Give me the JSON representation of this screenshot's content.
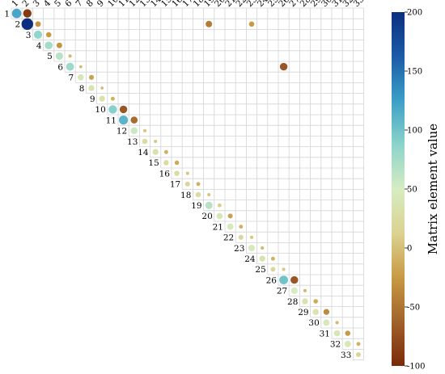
{
  "chart_data": {
    "type": "heatmap",
    "subtype": "upper-triangular bubble matrix",
    "size": 33,
    "row_labels": [
      "1",
      "2",
      "3",
      "4",
      "5",
      "6",
      "7",
      "8",
      "9",
      "10",
      "11",
      "12",
      "13",
      "14",
      "15",
      "16",
      "17",
      "18",
      "19",
      "20",
      "21",
      "22",
      "23",
      "24",
      "25",
      "26",
      "27",
      "28",
      "29",
      "30",
      "31",
      "32",
      "33"
    ],
    "col_labels": [
      "1",
      "2",
      "3",
      "4",
      "5",
      "6",
      "7",
      "8",
      "9",
      "10",
      "11",
      "12",
      "13",
      "14",
      "15",
      "16",
      "17",
      "18",
      "19",
      "20",
      "21",
      "22",
      "23",
      "24",
      "25",
      "26",
      "27",
      "28",
      "29",
      "30",
      "31",
      "32",
      "33"
    ],
    "cells": [
      {
        "row": 1,
        "col": 1,
        "value": 120
      },
      {
        "row": 1,
        "col": 2,
        "value": -90
      },
      {
        "row": 2,
        "col": 2,
        "value": 200
      },
      {
        "row": 2,
        "col": 3,
        "value": -30
      },
      {
        "row": 2,
        "col": 19,
        "value": -45
      },
      {
        "row": 2,
        "col": 23,
        "value": -25
      },
      {
        "row": 3,
        "col": 3,
        "value": 85
      },
      {
        "row": 3,
        "col": 4,
        "value": -25
      },
      {
        "row": 4,
        "col": 4,
        "value": 75
      },
      {
        "row": 4,
        "col": 5,
        "value": -30
      },
      {
        "row": 5,
        "col": 5,
        "value": 65
      },
      {
        "row": 5,
        "col": 6,
        "value": -5
      },
      {
        "row": 6,
        "col": 6,
        "value": 80
      },
      {
        "row": 6,
        "col": 7,
        "value": -3
      },
      {
        "row": 6,
        "col": 26,
        "value": -70
      },
      {
        "row": 7,
        "col": 7,
        "value": 40
      },
      {
        "row": 7,
        "col": 8,
        "value": -20
      },
      {
        "row": 8,
        "col": 8,
        "value": 35
      },
      {
        "row": 8,
        "col": 9,
        "value": -3
      },
      {
        "row": 9,
        "col": 9,
        "value": 35
      },
      {
        "row": 9,
        "col": 10,
        "value": -10
      },
      {
        "row": 10,
        "col": 10,
        "value": 90
      },
      {
        "row": 10,
        "col": 11,
        "value": -70
      },
      {
        "row": 11,
        "col": 11,
        "value": 110
      },
      {
        "row": 11,
        "col": 12,
        "value": -55
      },
      {
        "row": 12,
        "col": 12,
        "value": 55
      },
      {
        "row": 12,
        "col": 13,
        "value": 5
      },
      {
        "row": 13,
        "col": 13,
        "value": 25
      },
      {
        "row": 13,
        "col": 14,
        "value": 5
      },
      {
        "row": 14,
        "col": 14,
        "value": 35
      },
      {
        "row": 14,
        "col": 15,
        "value": -10
      },
      {
        "row": 15,
        "col": 15,
        "value": 25
      },
      {
        "row": 15,
        "col": 16,
        "value": -15
      },
      {
        "row": 16,
        "col": 16,
        "value": 25
      },
      {
        "row": 16,
        "col": 17,
        "value": 5
      },
      {
        "row": 17,
        "col": 17,
        "value": 20
      },
      {
        "row": 17,
        "col": 18,
        "value": -10
      },
      {
        "row": 18,
        "col": 18,
        "value": 25
      },
      {
        "row": 18,
        "col": 19,
        "value": 5
      },
      {
        "row": 19,
        "col": 19,
        "value": 65
      },
      {
        "row": 19,
        "col": 20,
        "value": 10
      },
      {
        "row": 20,
        "col": 20,
        "value": 40
      },
      {
        "row": 20,
        "col": 21,
        "value": -20
      },
      {
        "row": 21,
        "col": 21,
        "value": 45
      },
      {
        "row": 21,
        "col": 22,
        "value": -10
      },
      {
        "row": 22,
        "col": 22,
        "value": 20
      },
      {
        "row": 22,
        "col": 23,
        "value": 5
      },
      {
        "row": 23,
        "col": 23,
        "value": 45
      },
      {
        "row": 23,
        "col": 24,
        "value": -5
      },
      {
        "row": 24,
        "col": 24,
        "value": 35
      },
      {
        "row": 24,
        "col": 25,
        "value": -10
      },
      {
        "row": 25,
        "col": 25,
        "value": 20
      },
      {
        "row": 25,
        "col": 26,
        "value": 5
      },
      {
        "row": 26,
        "col": 26,
        "value": 100
      },
      {
        "row": 26,
        "col": 27,
        "value": -70
      },
      {
        "row": 27,
        "col": 27,
        "value": 50
      },
      {
        "row": 27,
        "col": 28,
        "value": -5
      },
      {
        "row": 28,
        "col": 28,
        "value": 35
      },
      {
        "row": 28,
        "col": 29,
        "value": -15
      },
      {
        "row": 29,
        "col": 29,
        "value": 40
      },
      {
        "row": 29,
        "col": 30,
        "value": -35
      },
      {
        "row": 30,
        "col": 30,
        "value": 45
      },
      {
        "row": 30,
        "col": 31,
        "value": -5
      },
      {
        "row": 31,
        "col": 31,
        "value": 40
      },
      {
        "row": 31,
        "col": 32,
        "value": -25
      },
      {
        "row": 32,
        "col": 32,
        "value": 45
      },
      {
        "row": 32,
        "col": 33,
        "value": -10
      },
      {
        "row": 33,
        "col": 33,
        "value": 20
      }
    ],
    "colorbar": {
      "label": "Matrix element value",
      "min": -100,
      "max": 200,
      "ticks": [
        200,
        150,
        100,
        50,
        0,
        -50,
        -100
      ],
      "colors": [
        "#7a2a0a",
        "#a0622a",
        "#c89a44",
        "#dcd291",
        "#d6ecc2",
        "#8cd4cb",
        "#3c9fc6",
        "#1b5ba8",
        "#0c2e7e"
      ]
    },
    "grid": true
  }
}
